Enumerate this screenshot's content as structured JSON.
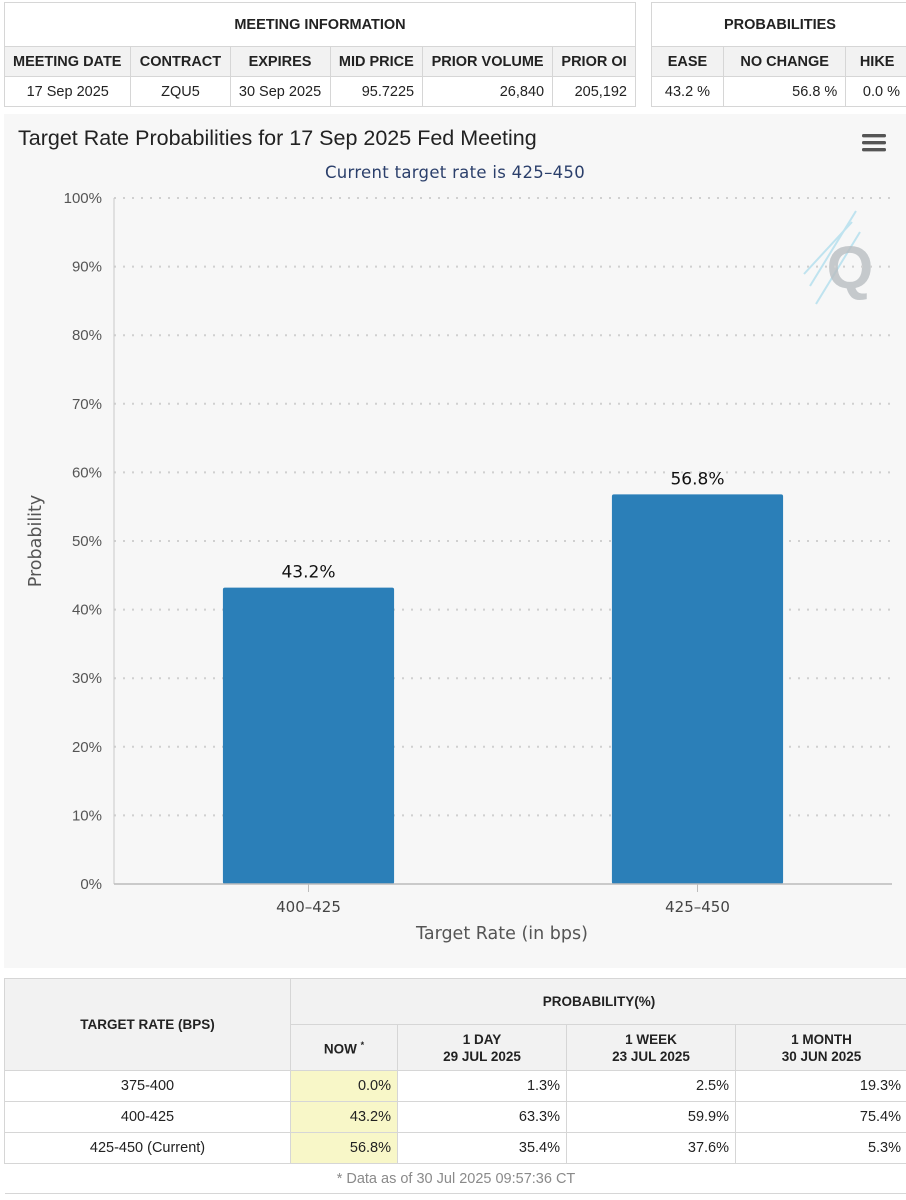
{
  "meeting_info": {
    "title": "MEETING INFORMATION",
    "headers": [
      "MEETING DATE",
      "CONTRACT",
      "EXPIRES",
      "MID PRICE",
      "PRIOR VOLUME",
      "PRIOR OI"
    ],
    "row": [
      "17 Sep 2025",
      "ZQU5",
      "30 Sep 2025",
      "95.7225",
      "26,840",
      "205,192"
    ]
  },
  "probabilities": {
    "title": "PROBABILITIES",
    "headers": [
      "EASE",
      "NO CHANGE",
      "HIKE"
    ],
    "row": [
      "43.2 %",
      "56.8 %",
      "0.0 %"
    ]
  },
  "chart_data": {
    "type": "bar",
    "title": "Target Rate Probabilities for 17 Sep 2025 Fed Meeting",
    "subtitle": "Current target rate is 425–450",
    "xlabel": "Target Rate (in bps)",
    "ylabel": "Probability",
    "categories": [
      "400–425",
      "425–450"
    ],
    "values": [
      43.2,
      56.8
    ],
    "data_labels": [
      "43.2%",
      "56.8%"
    ],
    "ylim": [
      0,
      100
    ],
    "yticks": [
      "0%",
      "10%",
      "20%",
      "30%",
      "40%",
      "50%",
      "60%",
      "70%",
      "80%",
      "90%",
      "100%"
    ],
    "grid": true,
    "bar_color": "#2b7fb8",
    "menu_icon": "hamburger-menu-icon",
    "watermark": "Q"
  },
  "history": {
    "rate_header": "TARGET RATE (BPS)",
    "prob_header": "PROBABILITY(%)",
    "columns": [
      {
        "line1": "NOW",
        "line2": ""
      },
      {
        "line1": "1 DAY",
        "line2": "29 JUL 2025"
      },
      {
        "line1": "1 WEEK",
        "line2": "23 JUL 2025"
      },
      {
        "line1": "1 MONTH",
        "line2": "30 JUN 2025"
      }
    ],
    "now_marker": "*",
    "rows": [
      {
        "rate": "375-400",
        "values": [
          "0.0%",
          "1.3%",
          "2.5%",
          "19.3%"
        ]
      },
      {
        "rate": "400-425",
        "values": [
          "43.2%",
          "63.3%",
          "59.9%",
          "75.4%"
        ]
      },
      {
        "rate": "425-450 (Current)",
        "values": [
          "56.8%",
          "35.4%",
          "37.6%",
          "5.3%"
        ]
      }
    ],
    "footnote": "* Data as of 30 Jul 2025 09:57:36 CT"
  }
}
